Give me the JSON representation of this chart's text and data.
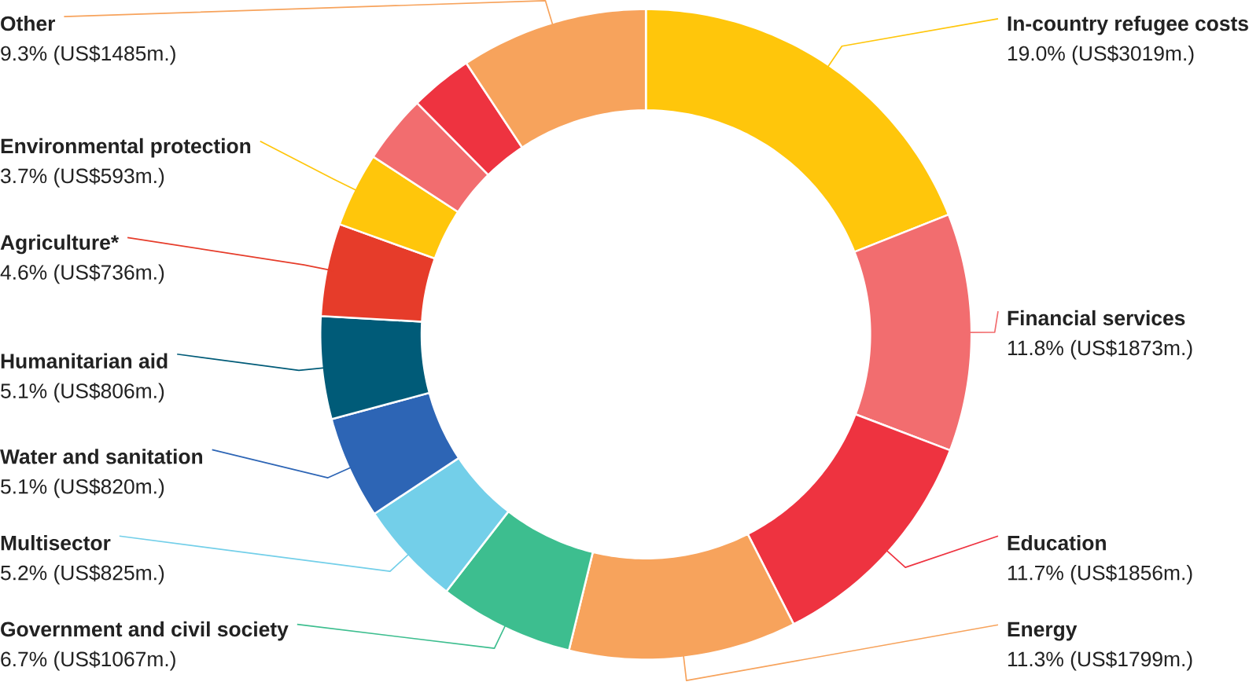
{
  "chart_data": {
    "type": "donut",
    "categories": [
      "In-country refugee costs",
      "Financial services",
      "Education",
      "Energy",
      "Government and civil society",
      "Multisector",
      "Water and sanitation",
      "Humanitarian aid",
      "Agriculture*",
      "Environmental protection",
      null,
      null,
      "Other"
    ],
    "values": [
      19.0,
      11.8,
      11.7,
      11.3,
      6.7,
      5.2,
      5.1,
      5.1,
      4.6,
      3.7,
      3.4,
      3.1,
      9.3
    ],
    "value_labels": [
      "19.0% (US$3019m.)",
      "11.8% (US$1873m.)",
      "11.7% (US$1856m.)",
      "11.3% (US$1799m.)",
      "6.7% (US$1067m.)",
      "5.2% (US$825m.)",
      "5.1% (US$820m.)",
      "5.1% (US$806m.)",
      "4.6% (US$736m.)",
      "3.7% (US$593m.)",
      null,
      null,
      "9.3% (US$1485m.)"
    ],
    "colors": [
      "#ffc60b",
      "#f26d6f",
      "#ee3340",
      "#f7a35c",
      "#3dbe8f",
      "#73cfe9",
      "#2d65b5",
      "#005b78",
      "#e63c2a",
      "#ffc60b",
      "#f26d6f",
      "#ee3340",
      "#f7a35c"
    ]
  }
}
